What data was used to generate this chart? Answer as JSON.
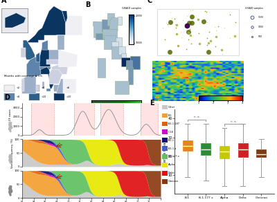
{
  "panel_labels": [
    "A",
    "B",
    "C",
    "D",
    "E"
  ],
  "background_color": "#ffffff",
  "boxplot": {
    "categories": [
      "B.1",
      "B.1.177 x",
      "Alpha",
      "Delta",
      "Omicron"
    ],
    "colors": [
      "#E8821A",
      "#2E8B35",
      "#C8C800",
      "#CC2222",
      "#7B3A10"
    ],
    "medians": [
      25.5,
      23.5,
      22.5,
      23.5,
      21.0
    ],
    "q1": [
      23.0,
      20.5,
      19.0,
      19.5,
      19.5
    ],
    "q3": [
      28.5,
      27.0,
      25.5,
      27.0,
      23.5
    ],
    "whislo": [
      9,
      7,
      4,
      4,
      9
    ],
    "whishi": [
      37,
      37,
      35,
      37,
      29
    ],
    "ylabel": "Average Ct value",
    "ylim": [
      0,
      45
    ],
    "yticks": [
      10,
      20,
      30,
      40
    ]
  },
  "variant_colors": {
    "Other": "#c8c8c8",
    "B.1": "#F4A030",
    "B.1.1.187": "#E06010",
    "C.16": "#DD00DD",
    "B.1.1": "#101070",
    "B.1.1.x": "#4060D0",
    "B.1.177.x": "#60C060",
    "Alpha": "#E8E800",
    "Delta": "#E01010",
    "Omicron": "#8B3A10"
  },
  "europe_map_legend": {
    "title": "Months with coverage ≥ 5%",
    "labels": [
      "<2",
      "<4",
      "<6",
      "<8",
      "<10",
      ">10"
    ],
    "colors": [
      "#f0eff4",
      "#cdd0e0",
      "#9dafc8",
      "#5d84aa",
      "#2c5f8a",
      "#0a3560"
    ]
  }
}
